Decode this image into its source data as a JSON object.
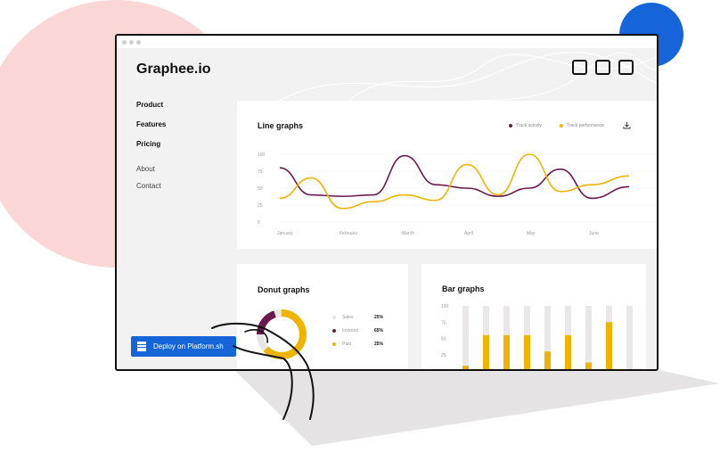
{
  "app": {
    "brand": "Graphee.io"
  },
  "nav": {
    "primary": [
      "Product",
      "Features",
      "Pricing"
    ],
    "secondary": [
      "About",
      "Contact"
    ]
  },
  "line_card": {
    "title": "Line graphs",
    "legend": [
      {
        "label": "Track activity",
        "color": "#6b1a4f"
      },
      {
        "label": "Track performance",
        "color": "#f0b400"
      }
    ],
    "download_icon": "download-icon"
  },
  "donut_card": {
    "title": "Donut graphs",
    "items": [
      {
        "label": "Sales",
        "value": "25%",
        "color": "#e8e5e7"
      },
      {
        "label": "Invoices",
        "value": "65%",
        "color": "#6b1a4f"
      },
      {
        "label": "Paid",
        "value": "25%",
        "color": "#f0b400"
      }
    ]
  },
  "bar_card": {
    "title": "Bar graphs"
  },
  "deploy": {
    "label": "Deploy on Platform.sh",
    "icon": "platform-icon"
  },
  "colors": {
    "accent_blue": "#1565d8",
    "purple": "#6b1a4f",
    "yellow": "#f0b400",
    "bg": "#f3f2f3"
  },
  "chart_data": [
    {
      "type": "line",
      "categories": [
        "January",
        "February",
        "March",
        "April",
        "May",
        "June"
      ],
      "yticks": [
        0,
        25,
        50,
        75,
        100
      ],
      "ylim": [
        0,
        100
      ],
      "series": [
        {
          "name": "Track activity",
          "x": [
            0,
            0.5,
            1,
            1.5,
            2,
            2.5,
            3,
            3.5,
            4,
            4.5,
            5,
            5.6
          ],
          "values": [
            80,
            40,
            38,
            40,
            98,
            55,
            50,
            38,
            50,
            78,
            35,
            52
          ]
        },
        {
          "name": "Track performance",
          "x": [
            0,
            0.5,
            1,
            1.5,
            2,
            2.5,
            3,
            3.5,
            4,
            4.5,
            5,
            5.6
          ],
          "values": [
            35,
            65,
            20,
            30,
            40,
            32,
            85,
            40,
            100,
            45,
            55,
            68
          ]
        }
      ]
    },
    {
      "type": "bar",
      "yticks": [
        0,
        25,
        50,
        75,
        100
      ],
      "ylim": [
        0,
        100
      ],
      "values": [
        8,
        55,
        55,
        55,
        30,
        55,
        13,
        75,
        0
      ]
    }
  ]
}
